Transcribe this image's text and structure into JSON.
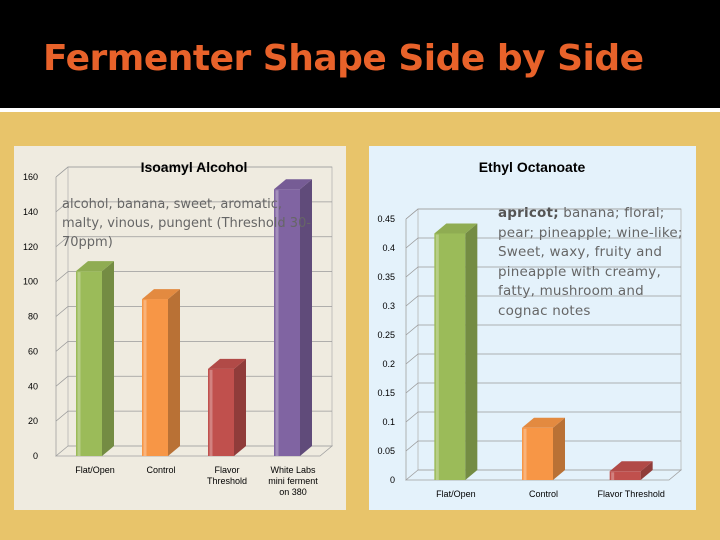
{
  "slide": {
    "title": "Fermenter Shape Side by Side"
  },
  "chart_data": [
    {
      "type": "bar",
      "title": "Isoamyl Alcohol",
      "categories": [
        "Flat/Open",
        "Control",
        "Flavor Threshold",
        "White Labs mini ferment on 380"
      ],
      "category_lines": [
        [
          "Flat/Open"
        ],
        [
          "Control"
        ],
        [
          "Flavor",
          "Threshold"
        ],
        [
          "White Labs",
          "mini ferment",
          "on 380"
        ]
      ],
      "values": [
        106,
        90,
        50,
        153
      ],
      "colors": [
        "#9bbb59",
        "#f79646",
        "#c0504d",
        "#8064a2"
      ],
      "yticks": [
        "0",
        "20",
        "40",
        "60",
        "80",
        "100",
        "120",
        "140",
        "160"
      ],
      "ylim": [
        0,
        160
      ],
      "grid": true,
      "annotation": "alcohol, banana, sweet, aromatic, malty, vinous, pungent (Threshold 30-70ppm)"
    },
    {
      "type": "bar",
      "title": "Ethyl Octanoate",
      "categories": [
        "Flat/Open",
        "Control",
        "Flavor Threshold"
      ],
      "category_lines": [
        [
          "Flat/Open"
        ],
        [
          "Control"
        ],
        [
          "Flavor Threshold"
        ]
      ],
      "values": [
        0.425,
        0.09,
        0.015
      ],
      "colors": [
        "#9bbb59",
        "#f79646",
        "#c0504d"
      ],
      "yticks": [
        "0",
        "0.05",
        "0.1",
        "0.15",
        "0.2",
        "0.25",
        "0.3",
        "0.35",
        "0.4",
        "0.45"
      ],
      "ylim": [
        0,
        0.45
      ],
      "grid": true,
      "annotation_bold": "apricot;",
      "annotation": " banana; floral; pear; pineapple; wine-like; Sweet, waxy, fruity and pineapple with creamy, fatty, mushroom and cognac notes"
    }
  ]
}
